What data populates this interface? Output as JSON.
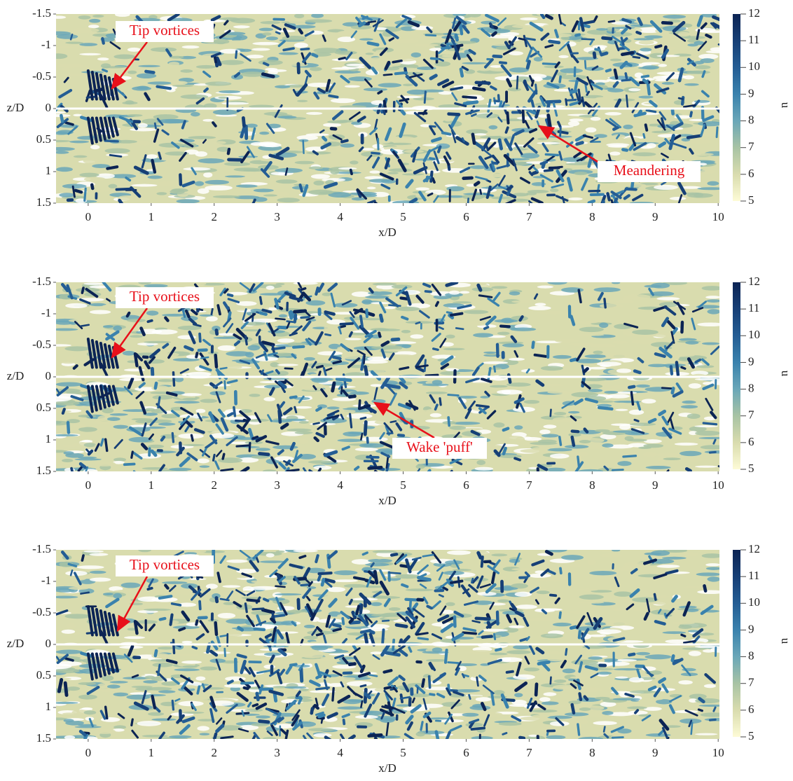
{
  "chart_data": [
    {
      "type": "field",
      "xlabel": "x/D",
      "ylabel": "z/D",
      "xlim": [
        -0.51,
        10.02
      ],
      "ylim": [
        -1.5,
        1.5
      ],
      "xticks": [
        0,
        1,
        2,
        3,
        4,
        5,
        6,
        7,
        8,
        9,
        10
      ],
      "yticks": [
        -1.5,
        -1,
        -0.5,
        0,
        0.5,
        1,
        1.5
      ],
      "colorbar_label": "u",
      "colorbar_lim": [
        5,
        12
      ],
      "colorbar_ticks": [
        5,
        6,
        7,
        8,
        9,
        10,
        11,
        12
      ],
      "colormap": [
        "#fdfbd6",
        "#d9dcae",
        "#a8c3a4",
        "#6aa7b8",
        "#3a82ad",
        "#245d94",
        "#163f76",
        "#0c2454"
      ],
      "annotations": [
        "Tip vortices",
        "Meandering"
      ]
    },
    {
      "type": "field",
      "xlabel": "x/D",
      "ylabel": "z/D",
      "xlim": [
        -0.51,
        10.02
      ],
      "ylim": [
        -1.5,
        1.5
      ],
      "xticks": [
        0,
        1,
        2,
        3,
        4,
        5,
        6,
        7,
        8,
        9,
        10
      ],
      "yticks": [
        -1.5,
        -1,
        -0.5,
        0,
        0.5,
        1,
        1.5
      ],
      "colorbar_label": "u",
      "colorbar_lim": [
        5,
        12
      ],
      "colorbar_ticks": [
        5,
        6,
        7,
        8,
        9,
        10,
        11,
        12
      ],
      "colormap": [
        "#fdfbd6",
        "#d9dcae",
        "#a8c3a4",
        "#6aa7b8",
        "#3a82ad",
        "#245d94",
        "#163f76",
        "#0c2454"
      ],
      "annotations": [
        "Tip vortices",
        "Wake 'puff'"
      ]
    },
    {
      "type": "field",
      "xlabel": "x/D",
      "ylabel": "z/D",
      "xlim": [
        -0.51,
        10.02
      ],
      "ylim": [
        -1.5,
        1.5
      ],
      "xticks": [
        0,
        1,
        2,
        3,
        4,
        5,
        6,
        7,
        8,
        9,
        10
      ],
      "yticks": [
        -1.5,
        -1,
        -0.5,
        0,
        0.5,
        1,
        1.5
      ],
      "colorbar_label": "u",
      "colorbar_lim": [
        5,
        12
      ],
      "colorbar_ticks": [
        5,
        6,
        7,
        8,
        9,
        10,
        11,
        12
      ],
      "colormap": [
        "#fdfbd6",
        "#d9dcae",
        "#a8c3a4",
        "#6aa7b8",
        "#3a82ad",
        "#245d94",
        "#163f76",
        "#0c2454"
      ],
      "annotations": [
        "Tip vortices"
      ]
    }
  ]
}
